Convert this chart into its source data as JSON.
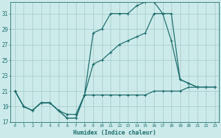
{
  "xlabel": "Humidex (Indice chaleur)",
  "bg_color": "#cceaea",
  "grid_color": "#aacccc",
  "line_color": "#1a6b6b",
  "xlim": [
    -0.5,
    23.5
  ],
  "ylim": [
    17,
    32.5
  ],
  "xticks": [
    0,
    1,
    2,
    3,
    4,
    5,
    6,
    7,
    8,
    9,
    10,
    11,
    12,
    13,
    14,
    15,
    16,
    17,
    18,
    19,
    20,
    21,
    22,
    23
  ],
  "yticks": [
    17,
    19,
    21,
    23,
    25,
    27,
    29,
    31
  ],
  "line1_x": [
    0,
    1,
    2,
    3,
    4,
    5,
    6,
    7,
    8,
    9,
    10,
    11,
    12,
    13,
    14,
    15,
    16,
    17,
    18,
    19,
    20,
    21,
    22,
    23
  ],
  "line1_y": [
    21,
    19,
    18.5,
    19.5,
    19.5,
    18.5,
    17.5,
    17.5,
    20.5,
    20.5,
    20.5,
    20.5,
    20.5,
    20.5,
    20.5,
    20.5,
    21,
    21,
    21,
    21,
    21.5,
    21.5,
    21.5,
    21.5
  ],
  "line2_x": [
    0,
    1,
    2,
    3,
    4,
    5,
    6,
    7,
    8,
    9,
    10,
    11,
    12,
    13,
    14,
    15,
    16,
    17,
    18,
    19,
    20,
    21,
    22,
    23
  ],
  "line2_y": [
    21,
    19,
    18.5,
    19.5,
    19.5,
    18.5,
    17.5,
    17.5,
    20.5,
    28.5,
    29,
    31,
    31,
    31,
    32,
    32.5,
    32.5,
    31,
    31,
    22.5,
    22,
    21.5,
    21.5,
    21.5
  ],
  "line3_x": [
    0,
    1,
    2,
    3,
    4,
    5,
    6,
    7,
    8,
    9,
    10,
    11,
    12,
    13,
    14,
    15,
    16,
    17,
    18,
    19,
    20,
    21,
    22,
    23
  ],
  "line3_y": [
    21,
    19,
    18.5,
    19.5,
    19.5,
    18.5,
    18,
    18,
    20.5,
    24.5,
    25,
    26,
    27,
    27.5,
    28,
    28.5,
    31,
    31,
    27.5,
    22.5,
    22,
    21.5,
    21.5,
    21.5
  ]
}
